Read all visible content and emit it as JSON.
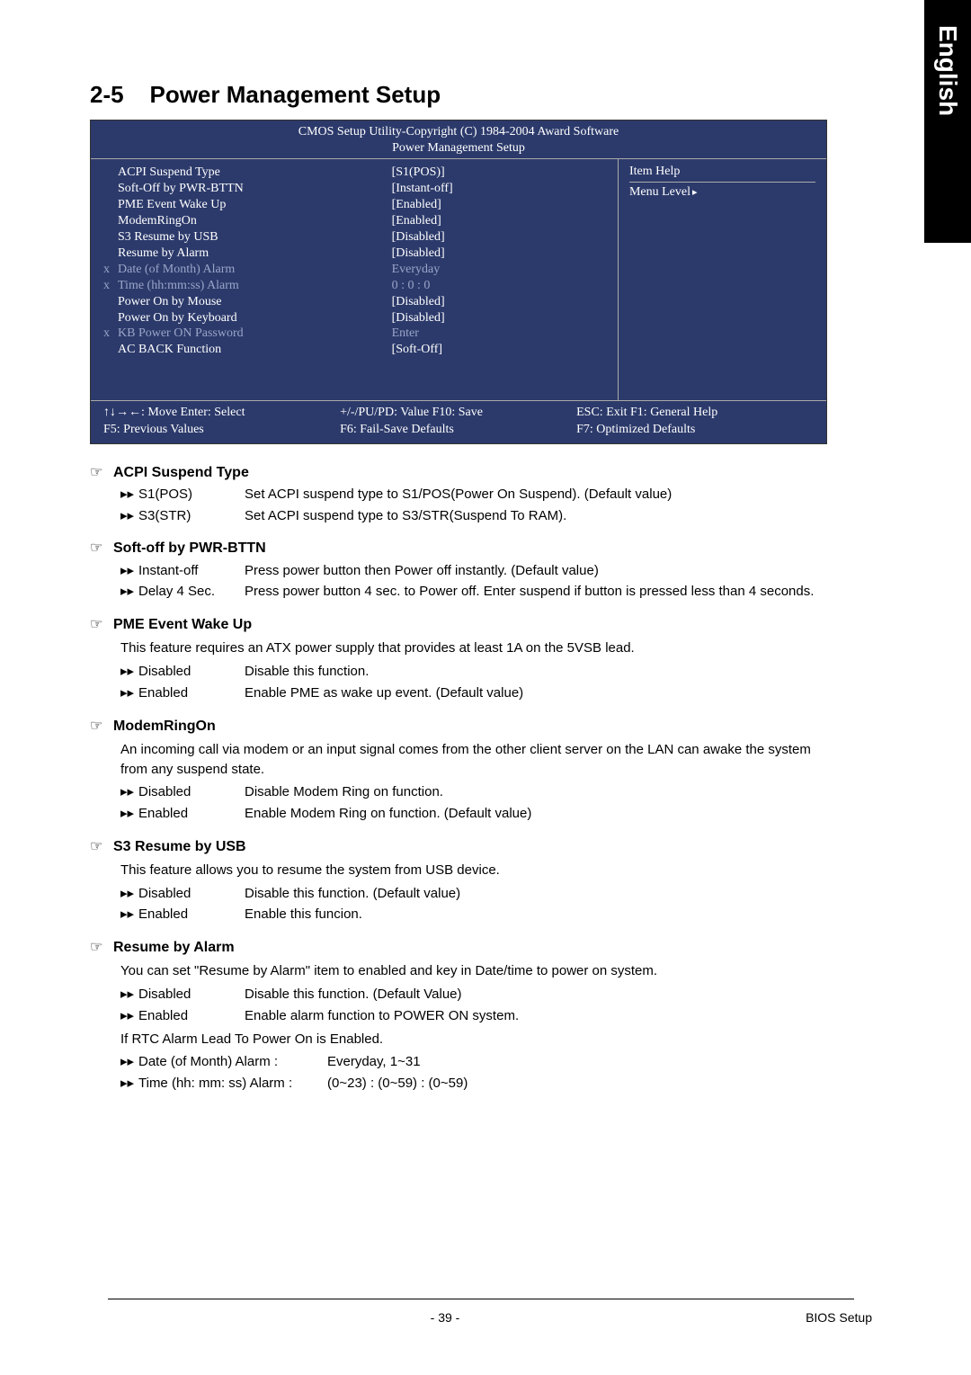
{
  "side_tab": "English",
  "section_number": "2-5",
  "section_title": "Power Management Setup",
  "bios": {
    "header_line1": "CMOS Setup Utility-Copyright (C) 1984-2004 Award Software",
    "header_line2": "Power Management Setup",
    "items": [
      {
        "mark": "",
        "label": "ACPI Suspend Type",
        "value": "[S1(POS)]",
        "dim": false
      },
      {
        "mark": "",
        "label": "Soft-Off by PWR-BTTN",
        "value": "[Instant-off]",
        "dim": false
      },
      {
        "mark": "",
        "label": "PME Event Wake Up",
        "value": "[Enabled]",
        "dim": false
      },
      {
        "mark": "",
        "label": "ModemRingOn",
        "value": "[Enabled]",
        "dim": false
      },
      {
        "mark": "",
        "label": "S3 Resume by USB",
        "value": "[Disabled]",
        "dim": false
      },
      {
        "mark": "",
        "label": "Resume by Alarm",
        "value": "[Disabled]",
        "dim": false
      },
      {
        "mark": "x",
        "label": "Date (of Month) Alarm",
        "value": "Everyday",
        "dim": true
      },
      {
        "mark": "x",
        "label": "Time (hh:mm:ss) Alarm",
        "value": "0 : 0 : 0",
        "dim": true
      },
      {
        "mark": "",
        "label": "Power On by Mouse",
        "value": "[Disabled]",
        "dim": false
      },
      {
        "mark": "",
        "label": "Power On by Keyboard",
        "value": "[Disabled]",
        "dim": false
      },
      {
        "mark": "x",
        "label": "KB Power ON Password",
        "value": "Enter",
        "dim": true
      },
      {
        "mark": "",
        "label": "AC BACK Function",
        "value": "[Soft-Off]",
        "dim": false
      }
    ],
    "help_title": "Item Help",
    "menu_level": "Menu Level",
    "footer": {
      "c1a": "↑↓→←: Move     Enter: Select",
      "c2a": "+/-/PU/PD: Value        F10: Save",
      "c3a": "ESC: Exit        F1: General Help",
      "c1b": "             F5: Previous Values",
      "c2b": "F6: Fail-Save Defaults",
      "c3b": "F7: Optimized Defaults"
    }
  },
  "sections": [
    {
      "title": "ACPI Suspend Type",
      "intro": "",
      "opts": [
        {
          "label": "S1(POS)",
          "desc": "Set ACPI suspend type to S1/POS(Power On Suspend). (Default value)"
        },
        {
          "label": "S3(STR)",
          "desc": "Set ACPI suspend type to S3/STR(Suspend To RAM)."
        }
      ]
    },
    {
      "title": "Soft-off by PWR-BTTN",
      "intro": "",
      "opts": [
        {
          "label": "Instant-off",
          "desc": "Press power button then Power off instantly. (Default value)"
        },
        {
          "label": "Delay 4 Sec.",
          "desc": "Press power button 4 sec. to Power off. Enter suspend if button is pressed less than 4 seconds."
        }
      ]
    },
    {
      "title": "PME Event Wake Up",
      "intro": "This feature requires an ATX power supply that provides at least 1A on the 5VSB lead.",
      "opts": [
        {
          "label": "Disabled",
          "desc": "Disable this function."
        },
        {
          "label": "Enabled",
          "desc": "Enable PME as wake up event. (Default value)"
        }
      ]
    },
    {
      "title": "ModemRingOn",
      "intro": "An incoming call via modem or an input signal comes from the other client server on the LAN can awake the system from any suspend state.",
      "opts": [
        {
          "label": "Disabled",
          "desc": "Disable Modem Ring on function."
        },
        {
          "label": "Enabled",
          "desc": "Enable Modem Ring on function. (Default value)"
        }
      ]
    },
    {
      "title": "S3 Resume by USB",
      "intro": "This feature allows you to resume the system from USB device.",
      "opts": [
        {
          "label": "Disabled",
          "desc": "Disable this function. (Default value)"
        },
        {
          "label": "Enabled",
          "desc": "Enable this funcion."
        }
      ]
    },
    {
      "title": "Resume by Alarm",
      "intro": "You can set \"Resume by Alarm\" item to enabled and key in Date/time to power on system.",
      "opts": [
        {
          "label": "Disabled",
          "desc": "Disable this function. (Default Value)"
        },
        {
          "label": "Enabled",
          "desc": "Enable alarm function to POWER ON system."
        }
      ],
      "trailer_line": "If RTC Alarm Lead To Power On is Enabled.",
      "trailer_opts": [
        {
          "label": "Date (of Month) Alarm :",
          "desc": "Everyday, 1~31"
        },
        {
          "label": "Time (hh: mm: ss) Alarm :",
          "desc": "(0~23) : (0~59) : (0~59)"
        }
      ]
    }
  ],
  "page_number": "- 39 -",
  "corner_label": "BIOS Setup",
  "glyphs": {
    "hand": "☞",
    "dblarrow": "▸▸"
  },
  "colors": {
    "bios_bg": "#2c3a6b",
    "bios_dim": "#9aa5c9",
    "text": "#000000",
    "side_bg": "#000000",
    "side_fg": "#ffffff"
  }
}
